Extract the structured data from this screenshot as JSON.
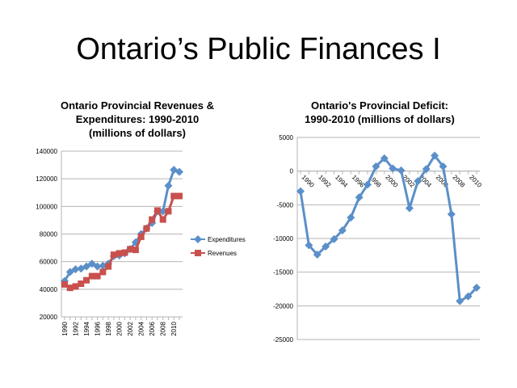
{
  "slide_title": "Ontario’s Public Finances I",
  "chart_data": [
    {
      "type": "line",
      "title_lines": [
        "Ontario Provincial Revenues &",
        "Expenditures: 1990-2010",
        "(millions of dollars)"
      ],
      "x": [
        1990,
        1991,
        1992,
        1993,
        1994,
        1995,
        1996,
        1997,
        1998,
        1999,
        2000,
        2001,
        2002,
        2003,
        2004,
        2005,
        2006,
        2007,
        2008,
        2009,
        2010,
        2011
      ],
      "x_tick_labels": [
        "1990",
        "1992",
        "1994",
        "1996",
        "1998",
        "2000",
        "2002",
        "2004",
        "2006",
        "2008",
        "2010"
      ],
      "y_ticks": [
        20000,
        40000,
        60000,
        80000,
        100000,
        120000,
        140000
      ],
      "ylim": [
        20000,
        140000
      ],
      "grid": true,
      "legend": "right",
      "series": [
        {
          "name": "Expenditures",
          "color": "#5B8FC9",
          "marker": "diamond",
          "values": [
            46000,
            52500,
            54500,
            55000,
            56500,
            58500,
            56500,
            57000,
            58500,
            64000,
            64500,
            66000,
            69000,
            74000,
            80000,
            84000,
            88000,
            96500,
            96500,
            115000,
            126500,
            125000
          ]
        },
        {
          "name": "Revenues",
          "color": "#C9504D",
          "marker": "square",
          "values": [
            43500,
            41000,
            42000,
            44000,
            46500,
            49500,
            49500,
            52500,
            56500,
            65000,
            66000,
            66500,
            69000,
            68500,
            78000,
            84000,
            90500,
            97000,
            90500,
            96500,
            107500,
            107500
          ]
        }
      ]
    },
    {
      "type": "line",
      "title_lines": [
        "Ontario's Provincial Deficit:",
        "1990-2010 (millions of dollars)"
      ],
      "x": [
        1990,
        1991,
        1992,
        1993,
        1994,
        1995,
        1996,
        1997,
        1998,
        1999,
        2000,
        2001,
        2002,
        2003,
        2004,
        2005,
        2006,
        2007,
        2008,
        2009,
        2010,
        2011
      ],
      "x_tick_labels": [
        "1990",
        "1992",
        "1994",
        "1996",
        "1998",
        "2000",
        "2002",
        "2004",
        "2006",
        "2008",
        "2010"
      ],
      "y_ticks": [
        5000,
        0,
        -5000,
        -10000,
        -15000,
        -20000,
        -25000
      ],
      "ylim": [
        -25000,
        5000
      ],
      "grid": true,
      "series": [
        {
          "name": "Deficit",
          "color": "#5B8FC9",
          "marker": "diamond",
          "values": [
            -3000,
            -11000,
            -12400,
            -11200,
            -10100,
            -8800,
            -6900,
            -3900,
            -2000,
            700,
            1900,
            400,
            100,
            -5500,
            -1500,
            300,
            2300,
            700,
            -6400,
            -19300,
            -18600,
            -17300
          ]
        }
      ]
    }
  ]
}
